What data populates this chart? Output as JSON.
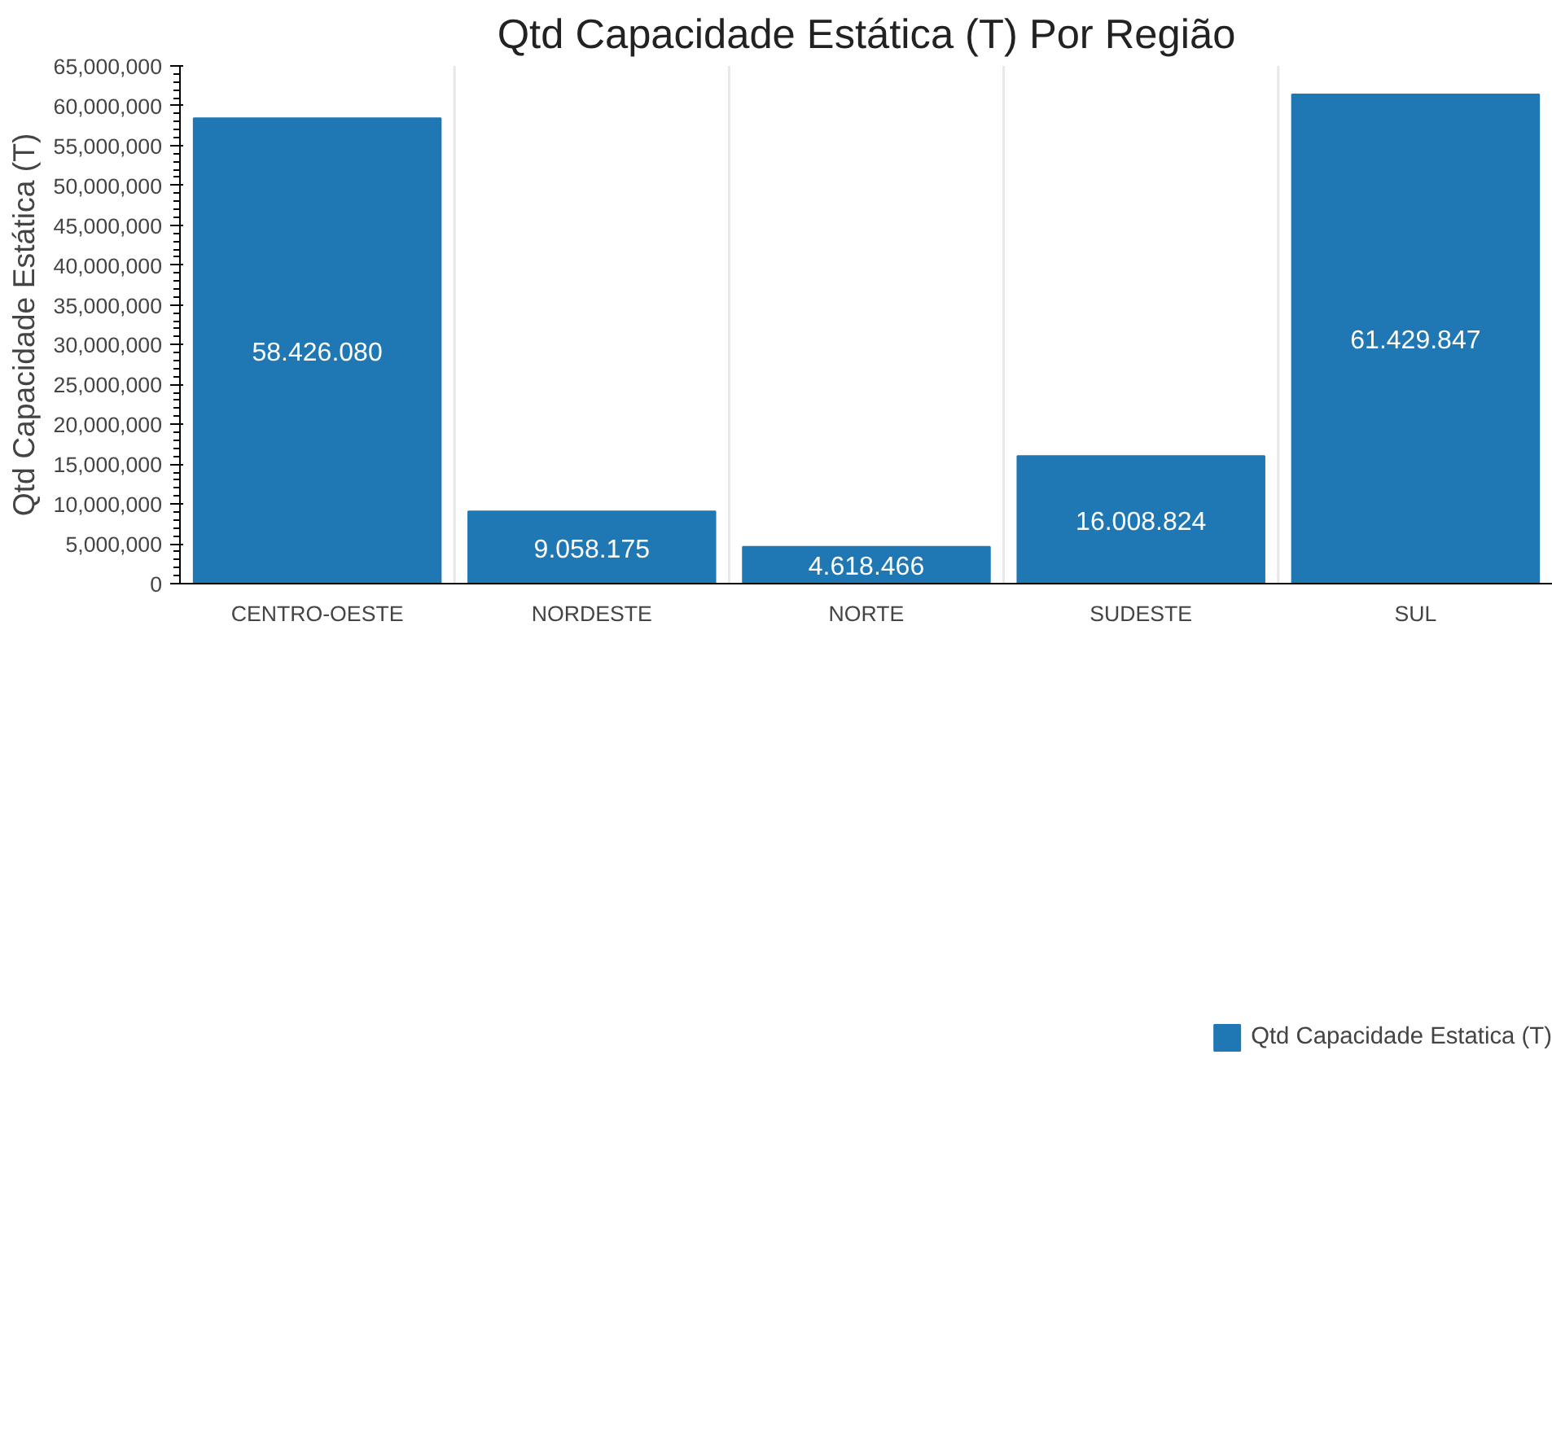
{
  "chart_data": {
    "type": "bar",
    "title": "Qtd Capacidade Estática (T) Por Região",
    "ylabel": "Qtd Capacidade Estática (T)",
    "categories": [
      "CENTRO-OESTE",
      "NORDESTE",
      "NORTE",
      "SUDESTE",
      "SUL"
    ],
    "series": [
      {
        "name": "Qtd Capacidade Estatica (T)",
        "color": "#1f77b4",
        "values": [
          58426080,
          9058175,
          4618466,
          16008824,
          61429847
        ],
        "value_labels": [
          "58.426.080",
          "9.058.175",
          "4.618.466",
          "16.008.824",
          "61.429.847"
        ]
      }
    ],
    "ylim": [
      0,
      65000000
    ],
    "yticks": [
      {
        "value": 0,
        "label": "0"
      },
      {
        "value": 5000000,
        "label": "5,000,000"
      },
      {
        "value": 10000000,
        "label": "10,000,000"
      },
      {
        "value": 15000000,
        "label": "15,000,000"
      },
      {
        "value": 20000000,
        "label": "20,000,000"
      },
      {
        "value": 25000000,
        "label": "25,000,000"
      },
      {
        "value": 30000000,
        "label": "30,000,000"
      },
      {
        "value": 35000000,
        "label": "35,000,000"
      },
      {
        "value": 40000000,
        "label": "40,000,000"
      },
      {
        "value": 45000000,
        "label": "45,000,000"
      },
      {
        "value": 50000000,
        "label": "50,000,000"
      },
      {
        "value": 55000000,
        "label": "55,000,000"
      },
      {
        "value": 60000000,
        "label": "60,000,000"
      },
      {
        "value": 65000000,
        "label": "65,000,000"
      }
    ],
    "grid": "x",
    "legend": "bottom"
  }
}
